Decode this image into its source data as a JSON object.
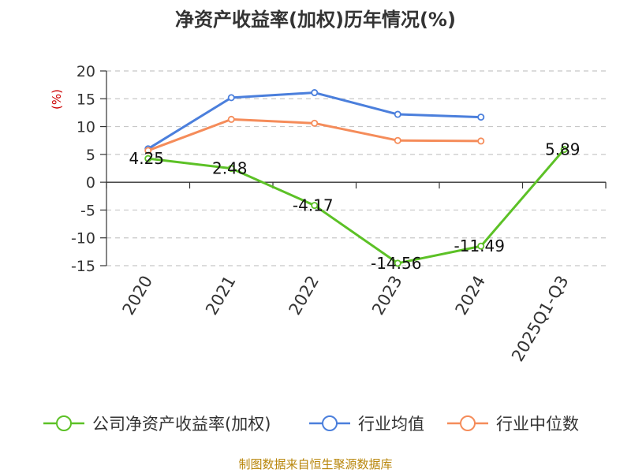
{
  "chart_data": {
    "type": "line",
    "title": "净资产收益率(加权)历年情况(%)",
    "ylabel": "(%)",
    "categories": [
      "2020",
      "2021",
      "2022",
      "2023",
      "2024",
      "2025Q1-Q3"
    ],
    "ylim": [
      -15,
      20
    ],
    "yticks": [
      20,
      15,
      10,
      5,
      0,
      -5,
      -10,
      -15
    ],
    "grid": true,
    "legend_position": "bottom",
    "series": [
      {
        "name": "公司净资产收益率(加权)",
        "color": "#5cc126",
        "values": [
          4.25,
          2.48,
          -4.17,
          -14.56,
          -11.49,
          5.89
        ],
        "labels": [
          "4.25",
          "2.48",
          "-4.17",
          "-14.56",
          "-11.49",
          "5.89"
        ]
      },
      {
        "name": "行业均值",
        "color": "#4b7fdc",
        "values": [
          6.0,
          15.2,
          16.1,
          12.2,
          11.7,
          null
        ]
      },
      {
        "name": "行业中位数",
        "color": "#f58c5a",
        "values": [
          5.7,
          11.3,
          10.6,
          7.5,
          7.4,
          null
        ]
      }
    ]
  },
  "source": "制图数据来自恒生聚源数据库"
}
